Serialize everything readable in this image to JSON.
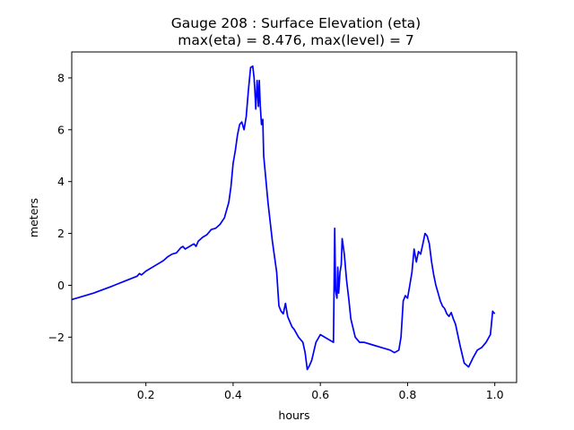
{
  "chart_data": {
    "type": "line",
    "title": "Gauge 208 : Surface Elevation (eta)",
    "subtitle": "max(eta) =   8.476,    max(level) = 7",
    "xlabel": "hours",
    "ylabel": "meters",
    "xlim": [
      0.03,
      1.05
    ],
    "ylim": [
      -3.75,
      9.0
    ],
    "x_ticks": [
      0.2,
      0.4,
      0.6,
      0.8,
      1.0
    ],
    "x_tick_labels": [
      "0.2",
      "0.4",
      "0.6",
      "0.8",
      "1.0"
    ],
    "y_ticks": [
      -2,
      0,
      2,
      4,
      6,
      8
    ],
    "y_tick_labels": [
      "−2",
      "0",
      "2",
      "4",
      "6",
      "8"
    ],
    "grid": false,
    "legend": false,
    "series": [
      {
        "color": "#0000ff",
        "x": [
          0.03,
          0.08,
          0.12,
          0.15,
          0.18,
          0.185,
          0.19,
          0.2,
          0.22,
          0.24,
          0.25,
          0.26,
          0.27,
          0.28,
          0.285,
          0.29,
          0.3,
          0.305,
          0.31,
          0.315,
          0.32,
          0.33,
          0.34,
          0.35,
          0.36,
          0.37,
          0.38,
          0.39,
          0.395,
          0.4,
          0.405,
          0.41,
          0.415,
          0.42,
          0.425,
          0.43,
          0.435,
          0.44,
          0.445,
          0.448,
          0.45,
          0.452,
          0.455,
          0.458,
          0.46,
          0.462,
          0.465,
          0.468,
          0.47,
          0.48,
          0.49,
          0.5,
          0.505,
          0.51,
          0.515,
          0.52,
          0.525,
          0.53,
          0.535,
          0.54,
          0.55,
          0.56,
          0.565,
          0.57,
          0.575,
          0.58,
          0.59,
          0.6,
          0.61,
          0.62,
          0.63,
          0.633,
          0.635,
          0.638,
          0.64,
          0.642,
          0.645,
          0.648,
          0.65,
          0.655,
          0.66,
          0.665,
          0.67,
          0.68,
          0.69,
          0.7,
          0.72,
          0.74,
          0.76,
          0.77,
          0.78,
          0.785,
          0.79,
          0.795,
          0.8,
          0.805,
          0.81,
          0.815,
          0.82,
          0.825,
          0.83,
          0.835,
          0.84,
          0.845,
          0.85,
          0.855,
          0.86,
          0.865,
          0.87,
          0.875,
          0.88,
          0.885,
          0.89,
          0.895,
          0.9,
          0.905,
          0.91,
          0.92,
          0.93,
          0.94,
          0.95,
          0.96,
          0.97,
          0.98,
          0.99,
          0.995,
          1.0
        ],
        "y": [
          -0.55,
          -0.3,
          -0.05,
          0.15,
          0.35,
          0.45,
          0.4,
          0.55,
          0.75,
          0.95,
          1.1,
          1.2,
          1.25,
          1.45,
          1.5,
          1.4,
          1.5,
          1.55,
          1.6,
          1.5,
          1.7,
          1.85,
          1.95,
          2.15,
          2.2,
          2.35,
          2.6,
          3.2,
          3.8,
          4.7,
          5.2,
          5.8,
          6.2,
          6.3,
          6.0,
          6.5,
          7.5,
          8.4,
          8.45,
          8.0,
          7.5,
          6.8,
          7.9,
          6.9,
          7.9,
          7.0,
          6.2,
          6.4,
          5.0,
          3.2,
          1.7,
          0.5,
          -0.8,
          -1.0,
          -1.1,
          -0.7,
          -1.2,
          -1.4,
          -1.6,
          -1.7,
          -2.0,
          -2.2,
          -2.6,
          -3.25,
          -3.1,
          -2.9,
          -2.2,
          -1.9,
          -2.0,
          -2.1,
          -2.2,
          2.2,
          -0.2,
          -0.5,
          0.7,
          -0.3,
          0.5,
          0.8,
          1.8,
          1.2,
          0.2,
          -0.5,
          -1.3,
          -2.0,
          -2.2,
          -2.2,
          -2.3,
          -2.4,
          -2.5,
          -2.6,
          -2.5,
          -2.0,
          -0.6,
          -0.4,
          -0.5,
          0.0,
          0.5,
          1.4,
          0.9,
          1.3,
          1.2,
          1.6,
          2.0,
          1.9,
          1.6,
          0.9,
          0.4,
          0.0,
          -0.3,
          -0.6,
          -0.8,
          -0.9,
          -1.1,
          -1.2,
          -1.05,
          -1.3,
          -1.5,
          -2.3,
          -3.0,
          -3.15,
          -2.8,
          -2.5,
          -2.4,
          -2.2,
          -1.9,
          -1.0,
          -1.1
        ]
      }
    ]
  }
}
